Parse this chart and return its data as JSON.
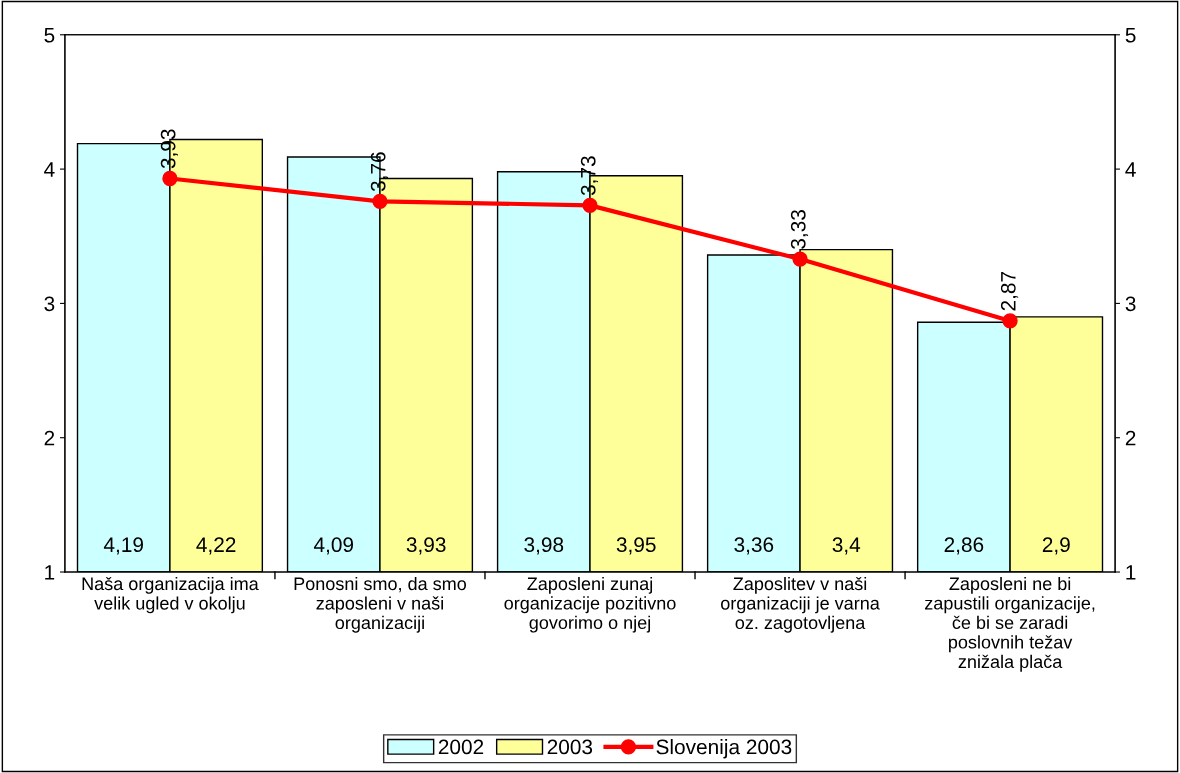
{
  "chart_data": {
    "type": "bar",
    "categories": [
      "Naša organizacija ima\nvelik ugled v okolju",
      "Ponosni smo, da smo\nzaposleni v naši\norganizaciji",
      "Zaposleni zunaj\norganizacije pozitivno\ngovorimo o njej",
      "Zaposlitev v naši\norganizaciji je varna\noz. zagotovljena",
      "Zaposleni ne bi\nzapustili organizacije,\nče bi se zaradi\nposlovnih težav\nznižala plača"
    ],
    "series": [
      {
        "name": "2002",
        "color": "#ccffff",
        "values": [
          4.19,
          4.09,
          3.98,
          3.36,
          2.86
        ],
        "value_labels": [
          "4,19",
          "4,09",
          "3,98",
          "3,36",
          "2,86"
        ]
      },
      {
        "name": "2003",
        "color": "#ffff99",
        "values": [
          4.22,
          3.93,
          3.95,
          3.4,
          2.9
        ],
        "value_labels": [
          "4,22",
          "3,93",
          "3,95",
          "3,4",
          "2,9"
        ]
      },
      {
        "name": "Slovenija 2003",
        "type": "line",
        "color": "#ff0000",
        "marker": "circle",
        "values": [
          3.93,
          3.76,
          3.73,
          3.33,
          2.87
        ],
        "value_labels": [
          "3,93",
          "3,76",
          "3,73",
          "3,33",
          "2,87"
        ]
      }
    ],
    "ylim": [
      1,
      5
    ],
    "yticks": [
      1,
      2,
      3,
      4,
      5
    ],
    "y2lim": [
      1,
      5
    ],
    "y2ticks": [
      1,
      2,
      3,
      4,
      5
    ],
    "grid": false,
    "legend": "bottom"
  }
}
